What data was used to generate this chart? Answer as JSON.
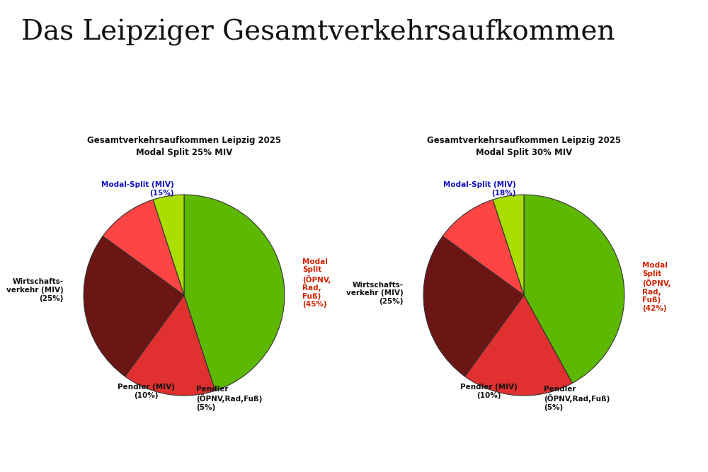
{
  "main_title": "Das Leipziger Gesamtverkehrsaufkommen",
  "main_title_fontsize": 28,
  "background_color": "#ffffff",
  "charts": [
    {
      "title": "Gesamtverkehrsaufkommen Leipzig 2025\nModal Split 25% MIV",
      "slices": [
        {
          "label": "Modal\nSplit\n(ÖPNV,\nRad,\nFuß)\n(45%)",
          "value": 45,
          "color": "#5cb800",
          "text_color": "#cc2200",
          "ha": "left",
          "va": "center",
          "ox": 1.18,
          "oy": 0.12
        },
        {
          "label": "Modal-Split (MIV)\n(15%)",
          "value": 15,
          "color": "#e03030",
          "text_color": "#1111bb",
          "ha": "right",
          "va": "bottom",
          "ox": -0.1,
          "oy": 0.98
        },
        {
          "label": "Wirtschafts-\nverkehr (MIV)\n(25%)",
          "value": 25,
          "color": "#6b1515",
          "text_color": "#111111",
          "ha": "right",
          "va": "center",
          "ox": -1.2,
          "oy": 0.05
        },
        {
          "label": "Pendler (MIV)\n(10%)",
          "value": 10,
          "color": "#ff4444",
          "text_color": "#111111",
          "ha": "center",
          "va": "top",
          "ox": -0.38,
          "oy": -0.88
        },
        {
          "label": "Pendler\n(ÖPNV,Rad,Fuß)\n(5%)",
          "value": 5,
          "color": "#aadd00",
          "text_color": "#111111",
          "ha": "left",
          "va": "top",
          "ox": 0.12,
          "oy": -0.9
        }
      ],
      "startangle": 90
    },
    {
      "title": "Gesamtverkehrsaufkommen Leipzig 2025\nModal Split 30% MIV",
      "slices": [
        {
          "label": "Modal\nSplit\n(ÖPNV,\nRad,\nFuß)\n(42%)",
          "value": 42,
          "color": "#5cb800",
          "text_color": "#cc2200",
          "ha": "left",
          "va": "center",
          "ox": 1.18,
          "oy": 0.08
        },
        {
          "label": "Modal-Split (MIV)\n(18%)",
          "value": 18,
          "color": "#e03030",
          "text_color": "#1111bb",
          "ha": "right",
          "va": "bottom",
          "ox": -0.08,
          "oy": 0.98
        },
        {
          "label": "Wirtschafts-\nverkehr (MIV)\n(25%)",
          "value": 25,
          "color": "#6b1515",
          "text_color": "#111111",
          "ha": "right",
          "va": "center",
          "ox": -1.2,
          "oy": 0.02
        },
        {
          "label": "Pendler (MIV)\n(10%)",
          "value": 10,
          "color": "#ff4444",
          "text_color": "#111111",
          "ha": "center",
          "va": "top",
          "ox": -0.35,
          "oy": -0.88
        },
        {
          "label": "Pendler\n(ÖPNV,Rad,Fuß)\n(5%)",
          "value": 5,
          "color": "#aadd00",
          "text_color": "#111111",
          "ha": "left",
          "va": "top",
          "ox": 0.2,
          "oy": -0.9
        }
      ],
      "startangle": 90
    }
  ]
}
